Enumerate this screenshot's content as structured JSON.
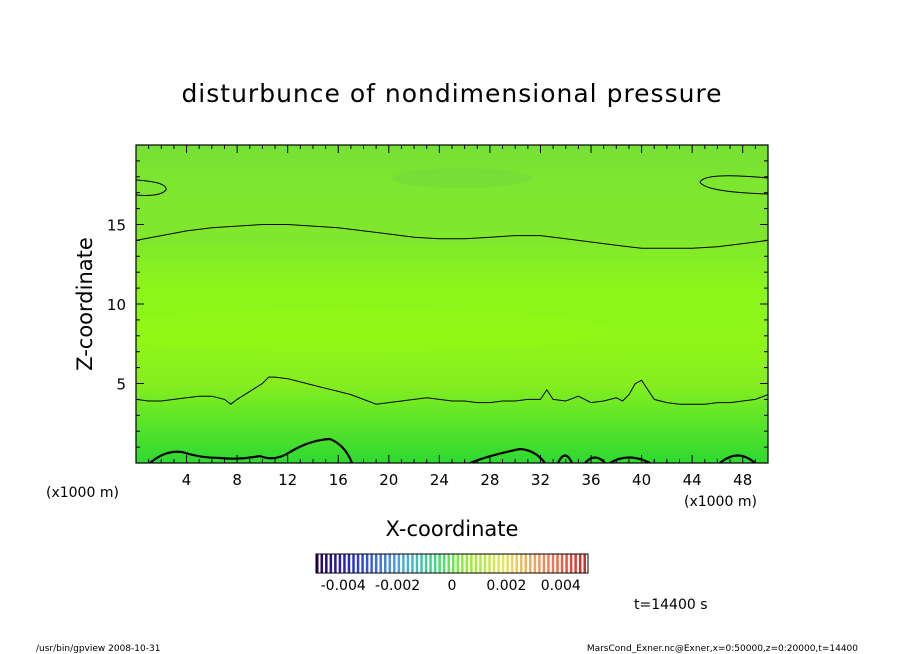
{
  "chart_data": {
    "type": "heatmap",
    "title": "disturbunce of nondimensional pressure",
    "xlabel": "X-coordinate",
    "ylabel": "Z-coordinate",
    "x_unit_left": "(x1000 m)",
    "x_unit_right": "(x1000 m)",
    "xlim": [
      0,
      50
    ],
    "ylim": [
      0,
      20
    ],
    "x_ticks": [
      "4",
      "8",
      "12",
      "16",
      "20",
      "24",
      "28",
      "32",
      "36",
      "40",
      "44",
      "48"
    ],
    "y_ticks": [
      "5",
      "10",
      "15"
    ],
    "colorbar": {
      "range": [
        -0.005,
        0.005
      ],
      "tick_labels": [
        "-0.004",
        "-0.002",
        "0",
        "0.002",
        "0.004"
      ]
    },
    "contours": [
      {
        "level_note": "",
        "x": [
          0,
          1,
          2,
          3,
          4,
          5,
          6,
          7,
          7.5,
          8,
          9,
          10,
          10.5,
          11,
          12,
          13,
          14,
          15,
          16,
          17,
          18,
          19,
          20,
          21,
          22,
          23,
          24,
          25,
          26,
          27,
          28,
          29,
          30,
          31,
          32,
          32.5,
          33,
          34,
          35,
          36,
          37,
          38,
          38.5,
          39,
          39.5,
          40,
          40.5,
          41,
          42,
          43,
          44,
          45,
          46,
          47,
          48,
          49,
          50
        ],
        "y": [
          4.0,
          3.9,
          3.9,
          4.0,
          4.1,
          4.2,
          4.2,
          4.0,
          3.7,
          4.0,
          4.5,
          5.0,
          5.4,
          5.4,
          5.3,
          5.1,
          4.9,
          4.7,
          4.5,
          4.3,
          4.0,
          3.7,
          3.8,
          3.9,
          4.0,
          4.1,
          4.0,
          3.9,
          3.9,
          3.8,
          3.8,
          3.9,
          3.9,
          4.0,
          4.0,
          4.6,
          4.0,
          3.9,
          4.2,
          3.8,
          3.9,
          4.1,
          3.9,
          4.3,
          5.0,
          5.2,
          4.6,
          4.0,
          3.8,
          3.7,
          3.7,
          3.7,
          3.8,
          3.8,
          3.9,
          4.0,
          4.3
        ]
      },
      {
        "level_note": "",
        "x": [
          0,
          2,
          4,
          6,
          8,
          10,
          12,
          14,
          16,
          18,
          20,
          22,
          24,
          26,
          28,
          30,
          32,
          34,
          36,
          38,
          40,
          42,
          44,
          46,
          48,
          50
        ],
        "y": [
          14.0,
          14.3,
          14.6,
          14.8,
          14.9,
          15.0,
          15.0,
          14.9,
          14.8,
          14.6,
          14.4,
          14.2,
          14.1,
          14.1,
          14.2,
          14.3,
          14.3,
          14.1,
          13.9,
          13.7,
          13.5,
          13.5,
          13.5,
          13.6,
          13.8,
          14.0
        ]
      }
    ],
    "time_label": "t=14400 s"
  },
  "footer": {
    "left": "/usr/bin/gpview   2008-10-31",
    "right": "MarsCond_Exner.nc@Exner,x=0:50000,z=0:20000,t=14400"
  },
  "colors": {
    "frame": "#000000",
    "contour": "#000000",
    "field_top": "#78e234",
    "field_mid": "#8cf517",
    "field_bottom": "#35e030"
  }
}
